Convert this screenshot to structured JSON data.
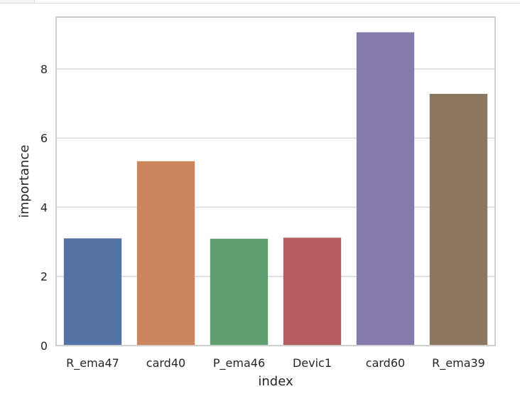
{
  "chart_data": {
    "type": "bar",
    "categories": [
      "R_ema47",
      "card40",
      "P_ema46",
      "Devic1",
      "card60",
      "R_ema39"
    ],
    "values": [
      3.1,
      5.33,
      3.09,
      3.12,
      9.06,
      7.28
    ],
    "xlabel": "index",
    "ylabel": "importance",
    "ylim": [
      0,
      9.5
    ],
    "yticks": [
      0,
      2,
      4,
      6,
      8
    ],
    "grid": true,
    "colors": [
      "#5572a4",
      "#cc865e",
      "#5f9e6e",
      "#b75d61",
      "#857aab",
      "#8c7761"
    ],
    "background": "#ffffff",
    "grid_color": "#d9d9d9",
    "frame_color": "#cfcfcf"
  }
}
